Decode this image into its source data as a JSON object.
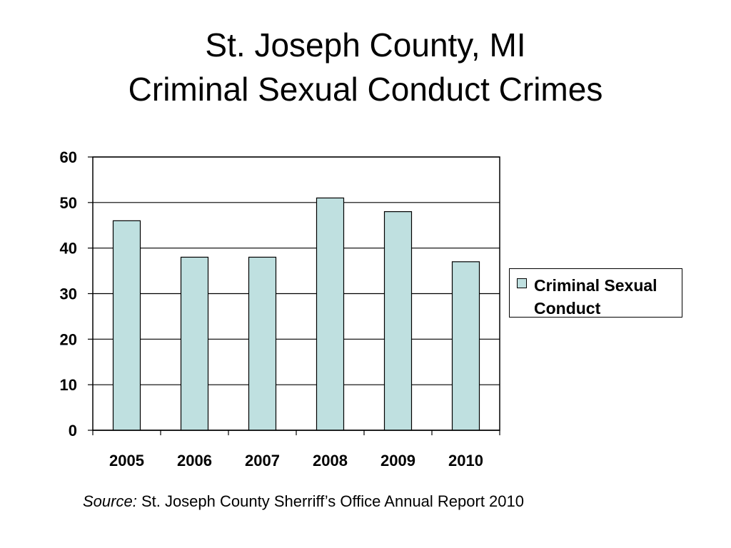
{
  "slide": {
    "title_line1": "St. Joseph County, MI",
    "title_line2": "Criminal Sexual Conduct Crimes",
    "source_label": "Source:",
    "source_text": " St. Joseph County Sherriff’s Office Annual Report 2010"
  },
  "colors": {
    "bar_fill": "#bfe0e0",
    "bar_stroke": "#000000",
    "gridline": "#000000"
  },
  "chart_data": {
    "type": "bar",
    "title": "",
    "xlabel": "",
    "ylabel": "",
    "categories": [
      "2005",
      "2006",
      "2007",
      "2008",
      "2009",
      "2010"
    ],
    "series": [
      {
        "name": "Criminal Sexual Conduct",
        "values": [
          46,
          38,
          38,
          51,
          48,
          37
        ]
      }
    ],
    "ylim": [
      0,
      60
    ],
    "yticks": [
      0,
      10,
      20,
      30,
      40,
      50,
      60
    ],
    "grid": true,
    "legend": "right"
  }
}
